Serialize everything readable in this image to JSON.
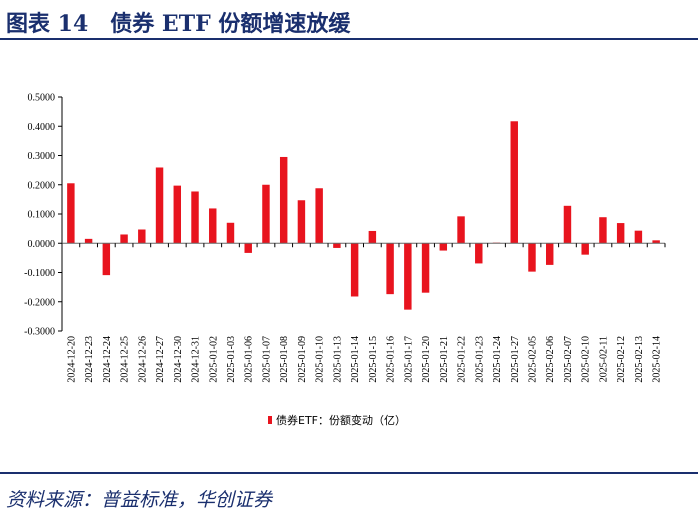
{
  "header": {
    "title": "图表 14　债券 ETF 份额增速放缓"
  },
  "footer": {
    "source": "资料来源：普益标准，华创证券"
  },
  "chart_data": {
    "type": "bar",
    "title": "",
    "xlabel": "",
    "ylabel": "",
    "ylim": [
      -0.3,
      0.5
    ],
    "yticks": [
      "0.5000",
      "0.4000",
      "0.3000",
      "0.2000",
      "0.1000",
      "0.0000",
      "-0.1000",
      "-0.2000",
      "-0.3000"
    ],
    "grid": false,
    "legend_position": "bottom",
    "bar_color": "#e8141e",
    "categories": [
      "2024-12-20",
      "2024-12-23",
      "2024-12-24",
      "2024-12-25",
      "2024-12-26",
      "2024-12-27",
      "2024-12-30",
      "2024-12-31",
      "2025-01-02",
      "2025-01-03",
      "2025-01-06",
      "2025-01-07",
      "2025-01-08",
      "2025-01-09",
      "2025-01-10",
      "2025-01-13",
      "2025-01-14",
      "2025-01-15",
      "2025-01-16",
      "2025-01-17",
      "2025-01-20",
      "2025-01-21",
      "2025-01-22",
      "2025-01-23",
      "2025-01-24",
      "2025-01-27",
      "2025-02-05",
      "2025-02-06",
      "2025-02-07",
      "2025-02-10",
      "2025-02-11",
      "2025-02-12",
      "2025-02-13",
      "2025-02-14"
    ],
    "series": [
      {
        "name": "债券ETF：份额变动（亿）",
        "values": [
          0.205,
          0.015,
          -0.109,
          0.03,
          0.047,
          0.259,
          0.197,
          0.177,
          0.119,
          0.07,
          -0.033,
          0.2,
          0.295,
          0.147,
          0.188,
          -0.016,
          -0.182,
          0.042,
          -0.174,
          -0.227,
          -0.169,
          -0.025,
          0.092,
          -0.069,
          0.002,
          0.417,
          -0.097,
          -0.074,
          0.128,
          -0.039,
          0.089,
          0.069,
          0.043,
          0.01
        ]
      }
    ]
  }
}
